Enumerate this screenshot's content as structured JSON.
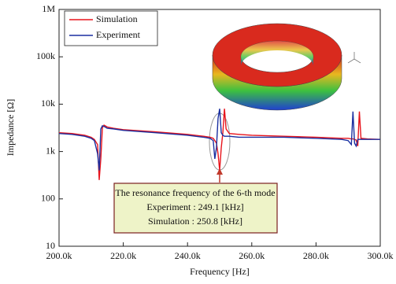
{
  "chart_data": {
    "type": "line",
    "xlabel": "Frequency [Hz]",
    "ylabel": "Impedance [Ω]",
    "log_y": true,
    "x": [
      200000,
      204000,
      208000,
      210000,
      211000,
      212000,
      212500,
      213000,
      213500,
      214000,
      215000,
      217000,
      220000,
      230000,
      240000,
      245000,
      247000,
      248000,
      248500,
      249000,
      249500,
      250000,
      250500,
      251000,
      251500,
      252000,
      253000,
      256000,
      260000,
      270000,
      280000,
      288000,
      290000,
      291000,
      291500,
      292000,
      292500,
      293000,
      293500,
      294000,
      296000,
      300000
    ],
    "series": [
      {
        "name": "Simulation",
        "color": "#e8141c",
        "values": [
          2500,
          2400,
          2200,
          2000,
          1800,
          1400,
          250,
          700,
          3200,
          3600,
          3300,
          3100,
          2900,
          2600,
          2300,
          2100,
          2000,
          1900,
          1700,
          1500,
          900,
          400,
          1200,
          2500,
          8000,
          3000,
          2400,
          2300,
          2200,
          2100,
          2000,
          1900,
          1900,
          1850,
          1850,
          1800,
          1750,
          1300,
          7000,
          1900,
          1850,
          1800
        ]
      },
      {
        "name": "Experiment",
        "color": "#1a2fa0",
        "values": [
          2400,
          2300,
          2100,
          1900,
          1700,
          900,
          400,
          3000,
          3500,
          3400,
          3100,
          3000,
          2800,
          2500,
          2200,
          2000,
          1900,
          1700,
          700,
          1200,
          5000,
          8000,
          2500,
          2200,
          2100,
          2100,
          2100,
          2000,
          2000,
          2000,
          1900,
          1800,
          1700,
          1400,
          7000,
          1500,
          1300,
          1800,
          1800,
          1800,
          1800,
          1800
        ]
      }
    ],
    "xlim": [
      200000,
      300000
    ],
    "xticks": [
      {
        "value": 200000,
        "label": "200.0k"
      },
      {
        "value": 220000,
        "label": "220.0k"
      },
      {
        "value": 240000,
        "label": "240.0k"
      },
      {
        "value": 260000,
        "label": "260.0k"
      },
      {
        "value": 280000,
        "label": "280.0k"
      },
      {
        "value": 300000,
        "label": "300.0k"
      }
    ],
    "ylim": [
      10,
      1000000
    ],
    "yticks": [
      10,
      100,
      {
        "value": 1000,
        "label": "1k"
      },
      {
        "value": 10000,
        "label": "10k"
      },
      {
        "value": 100000,
        "label": "100k"
      },
      {
        "value": 1000000,
        "label": "1M"
      }
    ],
    "annotation": [
      "The resonance frequency of the 6-th mode",
      "Experiment : 249.1 [kHz]",
      "Simulation : 250.8 [kHz]"
    ]
  }
}
